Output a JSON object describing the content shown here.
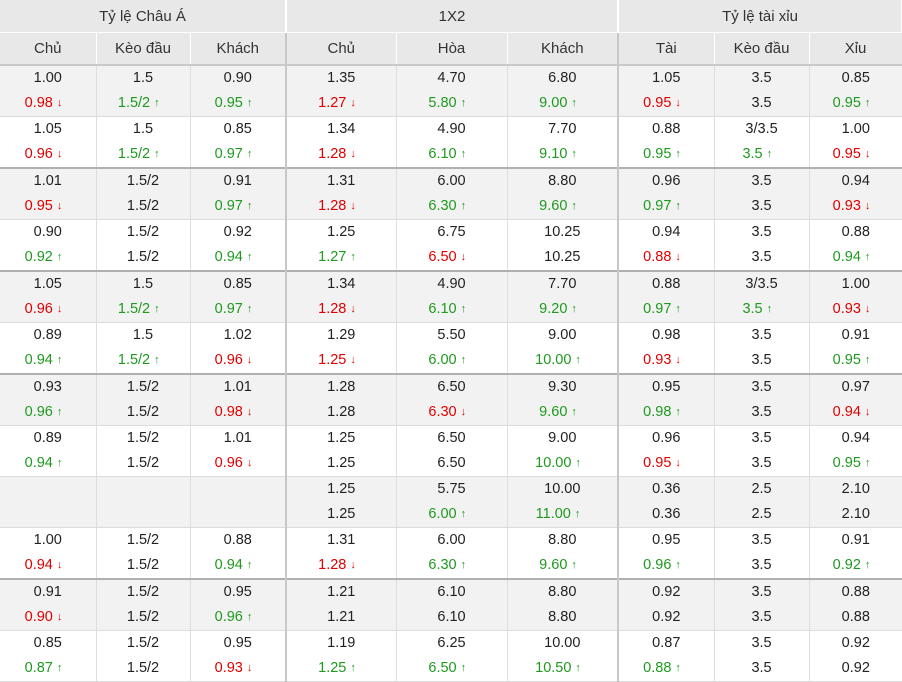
{
  "headers": {
    "groups": [
      "Tỷ lệ Châu Á",
      "1X2",
      "Tỷ lệ tài xỉu"
    ],
    "columns": [
      "Chủ",
      "Kèo đầu",
      "Khách",
      "Chủ",
      "Hòa",
      "Khách",
      "Tài",
      "Kèo đầu",
      "Xỉu"
    ]
  },
  "colors": {
    "up": "#1e9a1e",
    "down": "#e00000",
    "header_bg": "#e8e8e8",
    "shade_bg": "#f2f2f2"
  },
  "icons": {
    "up": "arrow-up-icon",
    "down": "arrow-down-icon"
  },
  "rows": [
    {
      "cells": [
        {
          "top": "1.00",
          "bottom": "0.98",
          "dir": "down"
        },
        {
          "top": "1.5",
          "bottom": "1.5/2",
          "dir": "up"
        },
        {
          "top": "0.90",
          "bottom": "0.95",
          "dir": "up"
        },
        {
          "top": "1.35",
          "bottom": "1.27",
          "dir": "down"
        },
        {
          "top": "4.70",
          "bottom": "5.80",
          "dir": "up"
        },
        {
          "top": "6.80",
          "bottom": "9.00",
          "dir": "up"
        },
        {
          "top": "1.05",
          "bottom": "0.95",
          "dir": "down"
        },
        {
          "top": "3.5",
          "bottom": "3.5",
          "dir": ""
        },
        {
          "top": "0.85",
          "bottom": "0.95",
          "dir": "up"
        }
      ]
    },
    {
      "cells": [
        {
          "top": "1.05",
          "bottom": "0.96",
          "dir": "down"
        },
        {
          "top": "1.5",
          "bottom": "1.5/2",
          "dir": "up"
        },
        {
          "top": "0.85",
          "bottom": "0.97",
          "dir": "up"
        },
        {
          "top": "1.34",
          "bottom": "1.28",
          "dir": "down"
        },
        {
          "top": "4.90",
          "bottom": "6.10",
          "dir": "up"
        },
        {
          "top": "7.70",
          "bottom": "9.10",
          "dir": "up"
        },
        {
          "top": "0.88",
          "bottom": "0.95",
          "dir": "up"
        },
        {
          "top": "3/3.5",
          "bottom": "3.5",
          "dir": "up"
        },
        {
          "top": "1.00",
          "bottom": "0.95",
          "dir": "down"
        }
      ]
    },
    {
      "cells": [
        {
          "top": "1.01",
          "bottom": "0.95",
          "dir": "down"
        },
        {
          "top": "1.5/2",
          "bottom": "1.5/2",
          "dir": ""
        },
        {
          "top": "0.91",
          "bottom": "0.97",
          "dir": "up"
        },
        {
          "top": "1.31",
          "bottom": "1.28",
          "dir": "down"
        },
        {
          "top": "6.00",
          "bottom": "6.30",
          "dir": "up"
        },
        {
          "top": "8.80",
          "bottom": "9.60",
          "dir": "up"
        },
        {
          "top": "0.96",
          "bottom": "0.97",
          "dir": "up"
        },
        {
          "top": "3.5",
          "bottom": "3.5",
          "dir": ""
        },
        {
          "top": "0.94",
          "bottom": "0.93",
          "dir": "down"
        }
      ]
    },
    {
      "cells": [
        {
          "top": "0.90",
          "bottom": "0.92",
          "dir": "up"
        },
        {
          "top": "1.5/2",
          "bottom": "1.5/2",
          "dir": ""
        },
        {
          "top": "0.92",
          "bottom": "0.94",
          "dir": "up"
        },
        {
          "top": "1.25",
          "bottom": "1.27",
          "dir": "up"
        },
        {
          "top": "6.75",
          "bottom": "6.50",
          "dir": "down"
        },
        {
          "top": "10.25",
          "bottom": "10.25",
          "dir": ""
        },
        {
          "top": "0.94",
          "bottom": "0.88",
          "dir": "down"
        },
        {
          "top": "3.5",
          "bottom": "3.5",
          "dir": ""
        },
        {
          "top": "0.88",
          "bottom": "0.94",
          "dir": "up"
        }
      ]
    },
    {
      "cells": [
        {
          "top": "1.05",
          "bottom": "0.96",
          "dir": "down"
        },
        {
          "top": "1.5",
          "bottom": "1.5/2",
          "dir": "up"
        },
        {
          "top": "0.85",
          "bottom": "0.97",
          "dir": "up"
        },
        {
          "top": "1.34",
          "bottom": "1.28",
          "dir": "down"
        },
        {
          "top": "4.90",
          "bottom": "6.10",
          "dir": "up"
        },
        {
          "top": "7.70",
          "bottom": "9.20",
          "dir": "up"
        },
        {
          "top": "0.88",
          "bottom": "0.97",
          "dir": "up"
        },
        {
          "top": "3/3.5",
          "bottom": "3.5",
          "dir": "up"
        },
        {
          "top": "1.00",
          "bottom": "0.93",
          "dir": "down"
        }
      ]
    },
    {
      "cells": [
        {
          "top": "0.89",
          "bottom": "0.94",
          "dir": "up"
        },
        {
          "top": "1.5",
          "bottom": "1.5/2",
          "dir": "up"
        },
        {
          "top": "1.02",
          "bottom": "0.96",
          "dir": "down"
        },
        {
          "top": "1.29",
          "bottom": "1.25",
          "dir": "down"
        },
        {
          "top": "5.50",
          "bottom": "6.00",
          "dir": "up"
        },
        {
          "top": "9.00",
          "bottom": "10.00",
          "dir": "up"
        },
        {
          "top": "0.98",
          "bottom": "0.93",
          "dir": "down"
        },
        {
          "top": "3.5",
          "bottom": "3.5",
          "dir": ""
        },
        {
          "top": "0.91",
          "bottom": "0.95",
          "dir": "up"
        }
      ]
    },
    {
      "cells": [
        {
          "top": "0.93",
          "bottom": "0.96",
          "dir": "up"
        },
        {
          "top": "1.5/2",
          "bottom": "1.5/2",
          "dir": ""
        },
        {
          "top": "1.01",
          "bottom": "0.98",
          "dir": "down"
        },
        {
          "top": "1.28",
          "bottom": "1.28",
          "dir": ""
        },
        {
          "top": "6.50",
          "bottom": "6.30",
          "dir": "down"
        },
        {
          "top": "9.30",
          "bottom": "9.60",
          "dir": "up"
        },
        {
          "top": "0.95",
          "bottom": "0.98",
          "dir": "up"
        },
        {
          "top": "3.5",
          "bottom": "3.5",
          "dir": ""
        },
        {
          "top": "0.97",
          "bottom": "0.94",
          "dir": "down"
        }
      ]
    },
    {
      "cells": [
        {
          "top": "0.89",
          "bottom": "0.94",
          "dir": "up"
        },
        {
          "top": "1.5/2",
          "bottom": "1.5/2",
          "dir": ""
        },
        {
          "top": "1.01",
          "bottom": "0.96",
          "dir": "down"
        },
        {
          "top": "1.25",
          "bottom": "1.25",
          "dir": ""
        },
        {
          "top": "6.50",
          "bottom": "6.50",
          "dir": ""
        },
        {
          "top": "9.00",
          "bottom": "10.00",
          "dir": "up"
        },
        {
          "top": "0.96",
          "bottom": "0.95",
          "dir": "down"
        },
        {
          "top": "3.5",
          "bottom": "3.5",
          "dir": ""
        },
        {
          "top": "0.94",
          "bottom": "0.95",
          "dir": "up"
        }
      ]
    },
    {
      "cells": [
        {
          "top": "",
          "bottom": "",
          "dir": ""
        },
        {
          "top": "",
          "bottom": "",
          "dir": ""
        },
        {
          "top": "",
          "bottom": "",
          "dir": ""
        },
        {
          "top": "1.25",
          "bottom": "1.25",
          "dir": ""
        },
        {
          "top": "5.75",
          "bottom": "6.00",
          "dir": "up"
        },
        {
          "top": "10.00",
          "bottom": "11.00",
          "dir": "up"
        },
        {
          "top": "0.36",
          "bottom": "0.36",
          "dir": ""
        },
        {
          "top": "2.5",
          "bottom": "2.5",
          "dir": ""
        },
        {
          "top": "2.10",
          "bottom": "2.10",
          "dir": ""
        }
      ]
    },
    {
      "cells": [
        {
          "top": "1.00",
          "bottom": "0.94",
          "dir": "down"
        },
        {
          "top": "1.5/2",
          "bottom": "1.5/2",
          "dir": ""
        },
        {
          "top": "0.88",
          "bottom": "0.94",
          "dir": "up"
        },
        {
          "top": "1.31",
          "bottom": "1.28",
          "dir": "down"
        },
        {
          "top": "6.00",
          "bottom": "6.30",
          "dir": "up"
        },
        {
          "top": "8.80",
          "bottom": "9.60",
          "dir": "up"
        },
        {
          "top": "0.95",
          "bottom": "0.96",
          "dir": "up"
        },
        {
          "top": "3.5",
          "bottom": "3.5",
          "dir": ""
        },
        {
          "top": "0.91",
          "bottom": "0.92",
          "dir": "up"
        }
      ]
    },
    {
      "cells": [
        {
          "top": "0.91",
          "bottom": "0.90",
          "dir": "down"
        },
        {
          "top": "1.5/2",
          "bottom": "1.5/2",
          "dir": ""
        },
        {
          "top": "0.95",
          "bottom": "0.96",
          "dir": "up"
        },
        {
          "top": "1.21",
          "bottom": "1.21",
          "dir": ""
        },
        {
          "top": "6.10",
          "bottom": "6.10",
          "dir": ""
        },
        {
          "top": "8.80",
          "bottom": "8.80",
          "dir": ""
        },
        {
          "top": "0.92",
          "bottom": "0.92",
          "dir": ""
        },
        {
          "top": "3.5",
          "bottom": "3.5",
          "dir": ""
        },
        {
          "top": "0.88",
          "bottom": "0.88",
          "dir": ""
        }
      ]
    },
    {
      "cells": [
        {
          "top": "0.85",
          "bottom": "0.87",
          "dir": "up"
        },
        {
          "top": "1.5/2",
          "bottom": "1.5/2",
          "dir": ""
        },
        {
          "top": "0.95",
          "bottom": "0.93",
          "dir": "down"
        },
        {
          "top": "1.19",
          "bottom": "1.25",
          "dir": "up"
        },
        {
          "top": "6.25",
          "bottom": "6.50",
          "dir": "up"
        },
        {
          "top": "10.00",
          "bottom": "10.50",
          "dir": "up"
        },
        {
          "top": "0.87",
          "bottom": "0.88",
          "dir": "up"
        },
        {
          "top": "3.5",
          "bottom": "3.5",
          "dir": ""
        },
        {
          "top": "0.92",
          "bottom": "0.92",
          "dir": ""
        }
      ]
    }
  ]
}
